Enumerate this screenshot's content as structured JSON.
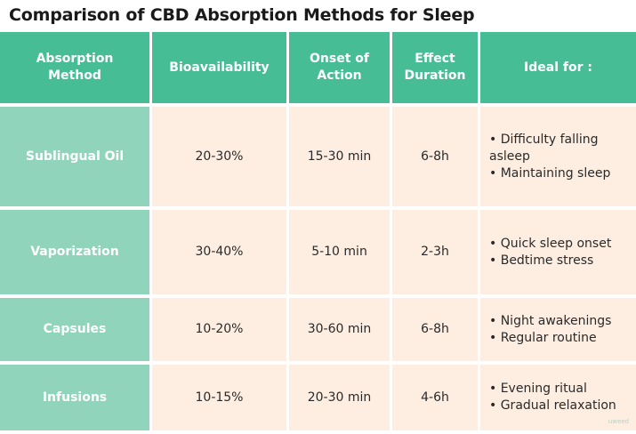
{
  "title": "Comparison of CBD Absorption Methods for Sleep",
  "colors": {
    "header_bg": "#47bd96",
    "row_header_bg": "#8fd4bb",
    "body_bg": "#fdeee1",
    "text": "#2a2a2a"
  },
  "headers": {
    "method": [
      "Absorption",
      "Method"
    ],
    "bioavailability": "Bioavailability",
    "onset": [
      "Onset of",
      "Action"
    ],
    "duration": [
      "Effect",
      "Duration"
    ],
    "ideal": "Ideal for :"
  },
  "rows": [
    {
      "method": "Sublingual Oil",
      "bioavailability": "20-30%",
      "onset": "15-30 min",
      "duration": "6-8h",
      "ideal": [
        "• Difficulty falling asleep",
        "• Maintaining sleep"
      ]
    },
    {
      "method": "Vaporization",
      "bioavailability": "30-40%",
      "onset": "5-10 min",
      "duration": "2-3h",
      "ideal": [
        "• Quick sleep onset",
        "• Bedtime stress"
      ]
    },
    {
      "method": "Capsules",
      "bioavailability": "10-20%",
      "onset": "30-60 min",
      "duration": "6-8h",
      "ideal": [
        "• Night awakenings",
        "• Regular routine"
      ]
    },
    {
      "method": "Infusions",
      "bioavailability": "10-15%",
      "onset": "20-30 min",
      "duration": "4-6h",
      "ideal": [
        "• Evening ritual",
        "• Gradual relaxation"
      ]
    }
  ],
  "watermark": "uweed"
}
